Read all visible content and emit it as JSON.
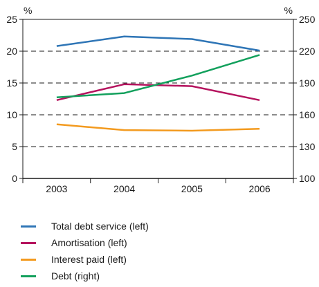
{
  "chart_data": {
    "type": "line",
    "categories": [
      "2003",
      "2004",
      "2005",
      "2006"
    ],
    "left_axis": {
      "unit": "%",
      "ylim": [
        0,
        25
      ],
      "ticks": [
        0,
        5,
        10,
        15,
        20,
        25
      ]
    },
    "right_axis": {
      "unit": "%",
      "ylim": [
        100,
        250
      ],
      "ticks": [
        100,
        130,
        160,
        190,
        220,
        250
      ]
    },
    "grid": "dashed horizontal",
    "legend_position": "bottom",
    "series": [
      {
        "name": "Total debt service (left)",
        "axis": "left",
        "color": "#2e75b6",
        "values": [
          20.8,
          22.3,
          21.9,
          20.1
        ]
      },
      {
        "name": "Amortisation (left)",
        "axis": "left",
        "color": "#b5135e",
        "values": [
          12.3,
          14.8,
          14.5,
          12.3
        ]
      },
      {
        "name": "Interest paid (left)",
        "axis": "left",
        "color": "#f39a1e",
        "values": [
          8.5,
          7.6,
          7.5,
          7.8
        ]
      },
      {
        "name": "Debt (right)",
        "axis": "right",
        "color": "#12a05c",
        "values": [
          176.5,
          180.5,
          197,
          216.5
        ]
      }
    ]
  }
}
